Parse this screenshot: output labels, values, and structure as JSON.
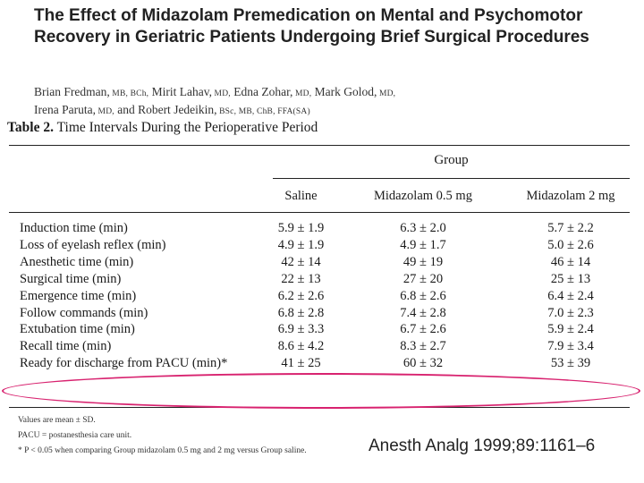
{
  "paper": {
    "title": "The Effect of Midazolam Premedication on Mental and Psychomotor Recovery in Geriatric Patients Undergoing Brief Surgical Procedures",
    "authors": [
      {
        "name": "Brian Fredman,",
        "degrees": " MB, BCh,"
      },
      {
        "name": " Mirit Lahav,",
        "degrees": " MD,"
      },
      {
        "name": " Edna Zohar,",
        "degrees": " MD,"
      },
      {
        "name": " Mark Golod,",
        "degrees": " MD,"
      },
      {
        "name": "Irena Paruta,",
        "degrees": " MD,"
      },
      {
        "name": " and Robert Jedeikin,",
        "degrees": " BSc, MB, ChB, FFA(SA)"
      }
    ],
    "citation": "Anesth Analg 1999;89:1161–6"
  },
  "table": {
    "label": "Table 2.",
    "caption": "Time Intervals During the Perioperative Period",
    "group_header": "Group",
    "columns": [
      "Saline",
      "Midazolam 0.5 mg",
      "Midazolam 2 mg"
    ],
    "rows": [
      {
        "label": "Induction time (min)",
        "values": [
          "5.9 ± 1.9",
          "6.3 ± 2.0",
          "5.7 ± 2.2"
        ]
      },
      {
        "label": "Loss of eyelash reflex (min)",
        "values": [
          "4.9 ± 1.9",
          "4.9 ± 1.7",
          "5.0 ± 2.6"
        ]
      },
      {
        "label": "Anesthetic time (min)",
        "values": [
          "42 ± 14",
          "49 ± 19",
          "46 ± 14"
        ]
      },
      {
        "label": "Surgical time (min)",
        "values": [
          "22 ± 13",
          "27 ± 20",
          "25 ± 13"
        ]
      },
      {
        "label": "Emergence time (min)",
        "values": [
          "6.2 ± 2.6",
          "6.8 ± 2.6",
          "6.4 ± 2.4"
        ]
      },
      {
        "label": "Follow commands (min)",
        "values": [
          "6.8 ± 2.8",
          "7.4 ± 2.8",
          "7.0 ± 2.3"
        ]
      },
      {
        "label": "Extubation time (min)",
        "values": [
          "6.9 ± 3.3",
          "6.7 ± 2.6",
          "5.9 ± 2.4"
        ]
      },
      {
        "label": "Recall time (min)",
        "values": [
          "8.6 ± 4.2",
          "8.3 ± 2.7",
          "7.9 ± 3.4"
        ]
      },
      {
        "label": "Ready for discharge from PACU (min)*",
        "values": [
          "41 ± 25",
          "60 ± 32",
          "53 ± 39"
        ]
      }
    ],
    "notes": [
      "Values are mean ± SD.",
      "PACU = postanesthesia care unit.",
      "* P < 0.05 when comparing Group midazolam 0.5 mg and 2 mg versus Group saline."
    ]
  },
  "colors": {
    "highlight_oval": "#d8226f"
  }
}
